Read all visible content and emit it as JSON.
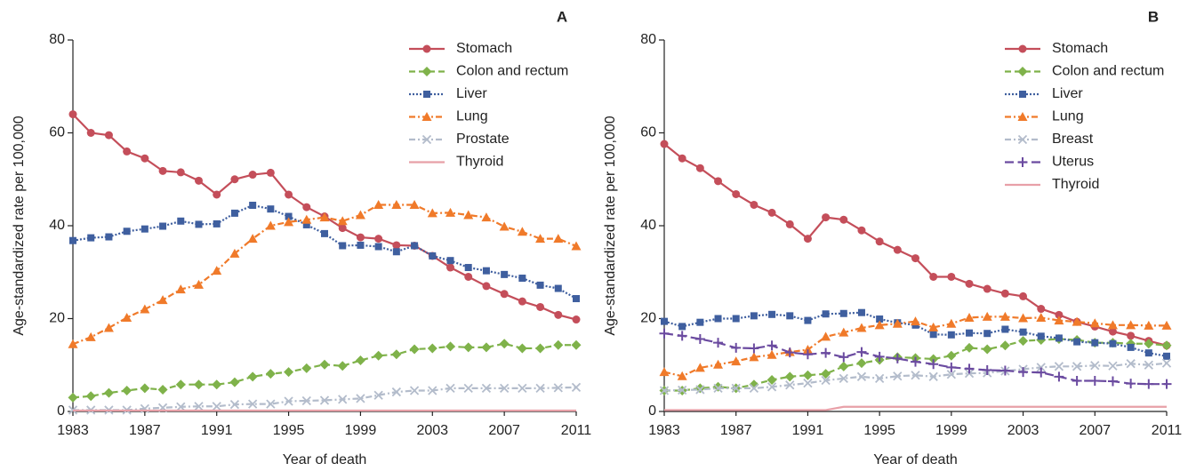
{
  "chart_data": [
    {
      "type": "line",
      "panel_label": "A",
      "xlabel": "Year of death",
      "ylabel": "Age-standardized rate per 100,000",
      "x": [
        1983,
        1984,
        1985,
        1986,
        1987,
        1988,
        1989,
        1990,
        1991,
        1992,
        1993,
        1994,
        1995,
        1996,
        1997,
        1998,
        1999,
        2000,
        2001,
        2002,
        2003,
        2004,
        2005,
        2006,
        2007,
        2008,
        2009,
        2010,
        2011
      ],
      "xlim": [
        1983,
        2011
      ],
      "xticks": [
        1983,
        1987,
        1991,
        1995,
        1999,
        2003,
        2007,
        2011
      ],
      "ylim": [
        0,
        80
      ],
      "yticks": [
        0,
        20,
        40,
        60,
        80
      ],
      "series": [
        {
          "name": "Stomach",
          "color": "#c44e5a",
          "marker": "circle",
          "line_style": "solid",
          "values": [
            64,
            60,
            59.5,
            56,
            54.5,
            51.8,
            51.5,
            49.7,
            46.7,
            50,
            51,
            51.4,
            46.7,
            44,
            42,
            39.5,
            37.5,
            37.2,
            35.8,
            35.7,
            33.5,
            31,
            29,
            27,
            25.3,
            23.7,
            22.5,
            20.8,
            19.8
          ]
        },
        {
          "name": "Colon and rectum",
          "color": "#7fb24a",
          "marker": "diamond",
          "line_style": "dashed",
          "values": [
            3,
            3.3,
            4,
            4.5,
            5,
            4.7,
            5.8,
            5.8,
            5.8,
            6.3,
            7.5,
            8.1,
            8.5,
            9.3,
            10.1,
            9.8,
            11,
            12,
            12.3,
            13.4,
            13.6,
            14,
            13.8,
            13.8,
            14.6,
            13.6,
            13.6,
            14.3,
            14.3
          ]
        },
        {
          "name": "Liver",
          "color": "#3f5f9f",
          "marker": "square",
          "line_style": "dotted",
          "values": [
            36.8,
            37.4,
            37.6,
            38.8,
            39.3,
            39.9,
            41,
            40.3,
            40.4,
            42.7,
            44.4,
            43.6,
            42,
            40.2,
            38.3,
            35.7,
            35.8,
            35.5,
            34.4,
            35.7,
            33.5,
            32.5,
            31,
            30.3,
            29.5,
            28.7,
            27.2,
            26.5,
            24.3
          ]
        },
        {
          "name": "Lung",
          "color": "#f07a2a",
          "marker": "triangle",
          "line_style": "dashdot",
          "values": [
            14.5,
            16,
            18,
            20.2,
            22,
            24,
            26.3,
            27.3,
            30.3,
            34,
            37.2,
            40,
            40.8,
            41.3,
            41.8,
            41,
            42.3,
            44.5,
            44.5,
            44.5,
            42.7,
            42.8,
            42.3,
            41.8,
            39.8,
            38.7,
            37.2,
            37.2,
            35.6
          ]
        },
        {
          "name": "Prostate",
          "color": "#b3bccb",
          "marker": "x",
          "line_style": "dashdot",
          "values": [
            0.3,
            0.3,
            0.3,
            0.3,
            0.6,
            0.8,
            1,
            1.1,
            1.1,
            1.5,
            1.6,
            1.6,
            2.2,
            2.3,
            2.4,
            2.6,
            2.8,
            3.5,
            4.2,
            4.5,
            4.5,
            5,
            5,
            5,
            5,
            5,
            5,
            5.1,
            5.2
          ]
        },
        {
          "name": "Thyroid",
          "color": "#e8a0a8",
          "marker": "none",
          "line_style": "solid",
          "values": [
            0.2,
            0.2,
            0.2,
            0.2,
            0.2,
            0.2,
            0.2,
            0.2,
            0.2,
            0.2,
            0.2,
            0.2,
            0.2,
            0.2,
            0.2,
            0.2,
            0.2,
            0.2,
            0.2,
            0.2,
            0.2,
            0.2,
            0.2,
            0.2,
            0.2,
            0.2,
            0.2,
            0.2,
            0.2
          ]
        }
      ]
    },
    {
      "type": "line",
      "panel_label": "B",
      "xlabel": "Year of death",
      "ylabel": "Age-standardized rate per 100,000",
      "x": [
        1983,
        1984,
        1985,
        1986,
        1987,
        1988,
        1989,
        1990,
        1991,
        1992,
        1993,
        1994,
        1995,
        1996,
        1997,
        1998,
        1999,
        2000,
        2001,
        2002,
        2003,
        2004,
        2005,
        2006,
        2007,
        2008,
        2009,
        2010,
        2011
      ],
      "xlim": [
        1983,
        2011
      ],
      "xticks": [
        1983,
        1987,
        1991,
        1995,
        1999,
        2003,
        2007,
        2011
      ],
      "ylim": [
        0,
        80
      ],
      "yticks": [
        0,
        20,
        40,
        60,
        80
      ],
      "series": [
        {
          "name": "Stomach",
          "color": "#c44e5a",
          "marker": "circle",
          "line_style": "solid",
          "values": [
            57.6,
            54.5,
            52.4,
            49.6,
            46.8,
            44.5,
            42.8,
            40.3,
            37.2,
            41.8,
            41.3,
            39,
            36.6,
            34.8,
            33,
            29,
            29,
            27.5,
            26.4,
            25.4,
            24.8,
            22.1,
            20.8,
            19.3,
            18.3,
            17.2,
            16.3,
            15.2,
            14.2
          ]
        },
        {
          "name": "Colon and rectum",
          "color": "#7fb24a",
          "marker": "diamond",
          "line_style": "dashed",
          "values": [
            4.5,
            4.5,
            5,
            5.3,
            5,
            5.8,
            6.8,
            7.5,
            7.8,
            8.1,
            9.7,
            10.4,
            11.1,
            11.7,
            11.5,
            11.3,
            12,
            13.7,
            13.4,
            14.2,
            15.2,
            15.4,
            15.6,
            15.4,
            14.8,
            14.8,
            14.6,
            14.6,
            14.2
          ]
        },
        {
          "name": "Liver",
          "color": "#3f5f9f",
          "marker": "square",
          "line_style": "dotted",
          "values": [
            19.4,
            18.3,
            19.2,
            20,
            20,
            20.6,
            20.9,
            20.6,
            19.6,
            21,
            21.1,
            21.3,
            19.9,
            19.1,
            18.6,
            16.6,
            16.5,
            16.9,
            16.8,
            17.7,
            17.1,
            16.2,
            15.8,
            15,
            14.8,
            14.6,
            13.8,
            12.6,
            11.9
          ]
        },
        {
          "name": "Lung",
          "color": "#f07a2a",
          "marker": "triangle",
          "line_style": "dashdot",
          "values": [
            8.5,
            7.6,
            9.4,
            10.1,
            10.8,
            11.7,
            12.2,
            12.8,
            13.3,
            16.1,
            17,
            18,
            18.6,
            18.9,
            19.4,
            18.1,
            18.9,
            20.2,
            20.4,
            20.4,
            20.1,
            20.2,
            19.6,
            19.3,
            19,
            18.6,
            18.6,
            18.5,
            18.5
          ]
        },
        {
          "name": "Breast",
          "color": "#b3bccb",
          "marker": "x",
          "line_style": "dashdot",
          "values": [
            4.5,
            4.6,
            4.7,
            5,
            5,
            5,
            5.3,
            5.7,
            6.1,
            6.7,
            7.1,
            7.5,
            7.1,
            7.6,
            7.8,
            7.5,
            8,
            8.2,
            8.3,
            8.7,
            9.1,
            9.5,
            9.7,
            9.7,
            9.9,
            9.8,
            10.3,
            10,
            10.4
          ]
        },
        {
          "name": "Uterus",
          "color": "#6b4ba0",
          "marker": "plus",
          "line_style": "longdash",
          "values": [
            16.8,
            16.3,
            15.6,
            14.8,
            13.7,
            13.6,
            14.2,
            12.7,
            12.3,
            12.6,
            11.7,
            12.8,
            11.8,
            11.4,
            10.7,
            10.2,
            9.5,
            9.2,
            8.9,
            8.8,
            8.5,
            8.4,
            7.5,
            6.6,
            6.6,
            6.5,
            6,
            5.9,
            5.9
          ]
        },
        {
          "name": "Thyroid",
          "color": "#e8a0a8",
          "marker": "none",
          "line_style": "solid",
          "values": [
            0.3,
            0.3,
            0.3,
            0.3,
            0.3,
            0.3,
            0.3,
            0.3,
            0.3,
            0.3,
            1,
            1,
            1,
            1,
            1,
            1,
            1,
            1,
            1,
            1,
            1,
            1,
            1,
            1,
            1,
            1,
            1,
            1,
            1
          ]
        }
      ]
    }
  ]
}
